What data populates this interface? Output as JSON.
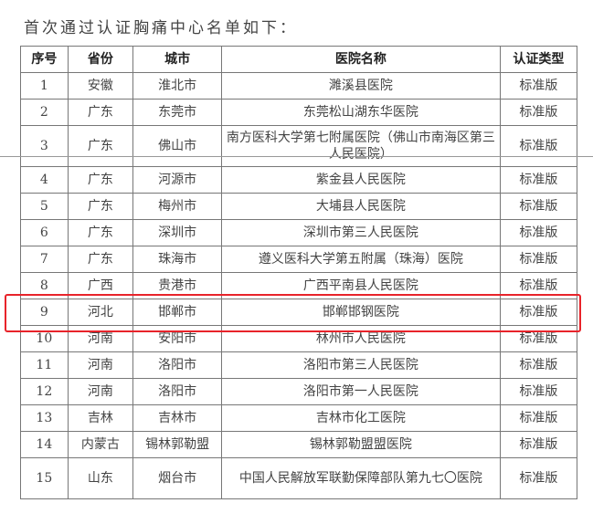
{
  "title": "首次通过认证胸痛中心名单如下：",
  "headers": [
    "序号",
    "省份",
    "城市",
    "医院名称",
    "认证类型"
  ],
  "rows": [
    [
      "1",
      "安徽",
      "淮北市",
      "濉溪县医院",
      "标准版"
    ],
    [
      "2",
      "广东",
      "东莞市",
      "东莞松山湖东华医院",
      "标准版"
    ],
    [
      "3",
      "广东",
      "佛山市",
      "南方医科大学第七附属医院（佛山市南海区第三人民医院）",
      "标准版"
    ],
    [
      "4",
      "广东",
      "河源市",
      "紫金县人民医院",
      "标准版"
    ],
    [
      "5",
      "广东",
      "梅州市",
      "大埔县人民医院",
      "标准版"
    ],
    [
      "6",
      "广东",
      "深圳市",
      "深圳市第三人民医院",
      "标准版"
    ],
    [
      "7",
      "广东",
      "珠海市",
      "遵义医科大学第五附属（珠海）医院",
      "标准版"
    ],
    [
      "8",
      "广西",
      "贵港市",
      "广西平南县人民医院",
      "标准版"
    ],
    [
      "9",
      "河北",
      "邯郸市",
      "邯郸邯钢医院",
      "标准版"
    ],
    [
      "10",
      "河南",
      "安阳市",
      "林州市人民医院",
      "标准版"
    ],
    [
      "11",
      "河南",
      "洛阳市",
      "洛阳市第三人民医院",
      "标准版"
    ],
    [
      "12",
      "河南",
      "洛阳市",
      "洛阳市第一人民医院",
      "标准版"
    ],
    [
      "13",
      "吉林",
      "吉林市",
      "吉林市化工医院",
      "标准版"
    ],
    [
      "14",
      "内蒙古",
      "锡林郭勒盟",
      "锡林郭勒盟盟医院",
      "标准版"
    ],
    [
      "15",
      "山东",
      "烟台市",
      "中国人民解放军联勤保障部队第九七〇医院",
      "标准版"
    ]
  ],
  "highlight": {
    "row_index": 8,
    "color": "#e8232a"
  }
}
